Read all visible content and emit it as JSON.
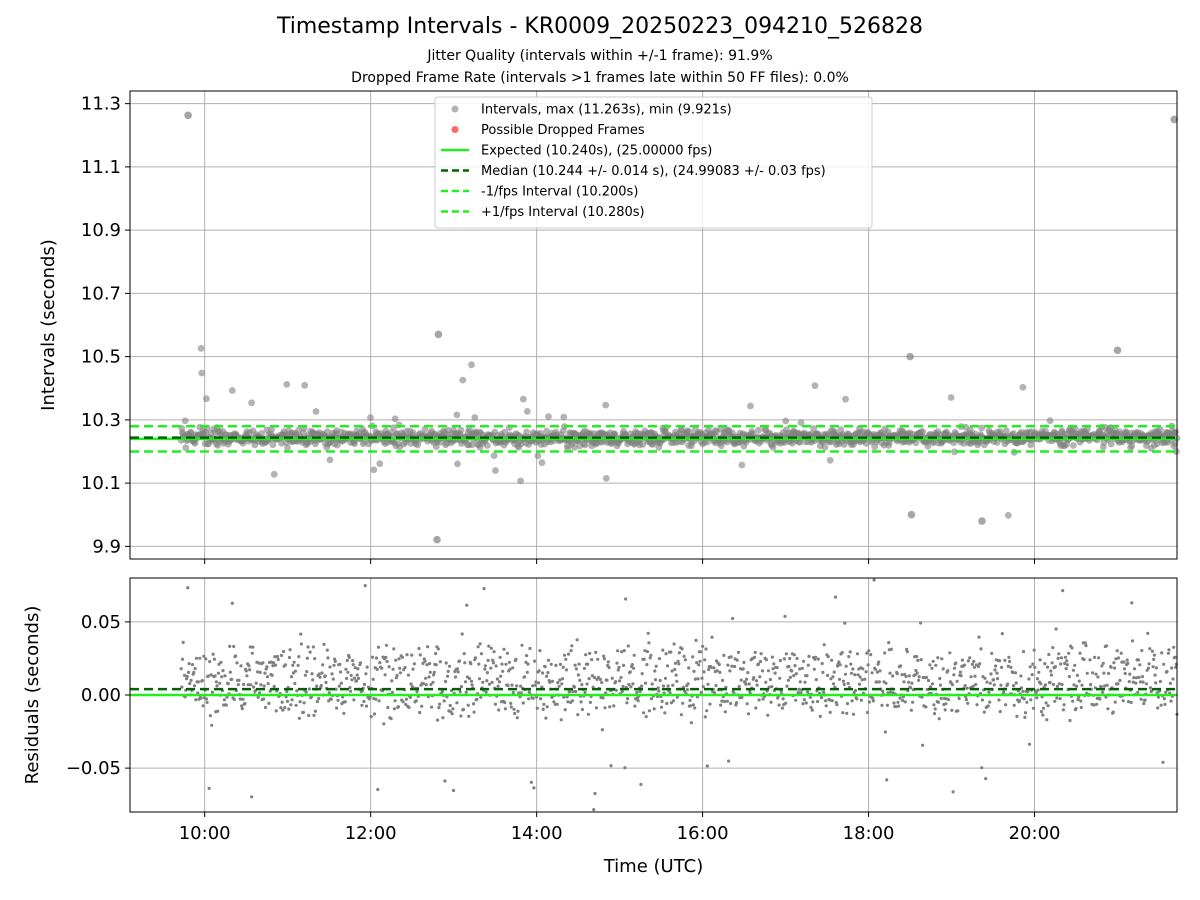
{
  "title": "Timestamp Intervals - KR0009_20250223_094210_526828",
  "subtitle_1": "Jitter Quality (intervals within +/-1 frame): 91.9%",
  "subtitle_2": "Dropped Frame Rate (intervals >1 frames late within 50 FF files): 0.0%",
  "colors": {
    "points": "#808080",
    "dropped": "#ff6666",
    "expected": "#22ee22",
    "median": "#006400",
    "interval_lines": "#22ee22",
    "grid": "#b0b0b0"
  },
  "chart_data": [
    {
      "type": "scatter",
      "ylabel": "Intervals (seconds)",
      "xlabel": "",
      "xlim": [
        "09:06",
        "21:43"
      ],
      "ylim": [
        9.86,
        11.34
      ],
      "xticks": [
        "10:00",
        "12:00",
        "14:00",
        "16:00",
        "18:00",
        "20:00"
      ],
      "yticks": [
        "9.9",
        "10.1",
        "10.3",
        "10.5",
        "10.7",
        "10.9",
        "11.1",
        "11.3"
      ],
      "grid": true,
      "legend_position": "top-center",
      "legend": [
        {
          "label": "Intervals, max (11.263s), min (9.921s)",
          "kind": "point-gray"
        },
        {
          "label": "Possible Dropped Frames",
          "kind": "point-red"
        },
        {
          "label": "Expected (10.240s), (25.00000 fps)",
          "kind": "solid-green"
        },
        {
          "label": "Median (10.244 +/- 0.014 s), (24.99083 +/- 0.03 fps)",
          "kind": "dashed-darkgreen"
        },
        {
          "label": "-1/fps Interval (10.200s)",
          "kind": "dashed-green"
        },
        {
          "label": "+1/fps Interval (10.280s)",
          "kind": "dashed-green"
        }
      ],
      "reference_lines": {
        "expected": 10.24,
        "median": 10.244,
        "minus_interval": 10.2,
        "plus_interval": 10.28
      },
      "time_range": [
        "09:43",
        "21:43"
      ],
      "interval_max": 11.263,
      "interval_min": 9.921,
      "outliers": [
        {
          "t": "09:48",
          "y": 11.263
        },
        {
          "t": "21:41",
          "y": 11.25
        },
        {
          "t": "12:49",
          "y": 10.57
        },
        {
          "t": "12:48",
          "y": 9.921
        },
        {
          "t": "21:00",
          "y": 10.52
        },
        {
          "t": "18:30",
          "y": 10.5
        },
        {
          "t": "19:22",
          "y": 9.98
        },
        {
          "t": "18:31",
          "y": 10.0
        }
      ]
    },
    {
      "type": "scatter",
      "ylabel": "Residuals (seconds)",
      "xlabel": "Time (UTC)",
      "xlim": [
        "09:06",
        "21:43"
      ],
      "ylim": [
        -0.08,
        0.08
      ],
      "xticks": [
        "10:00",
        "12:00",
        "14:00",
        "16:00",
        "18:00",
        "20:00"
      ],
      "yticks": [
        "0.05",
        "0.00",
        "−0.05"
      ],
      "grid": true,
      "reference_lines": {
        "zero": 0.0,
        "median_offset": 0.004
      }
    }
  ]
}
